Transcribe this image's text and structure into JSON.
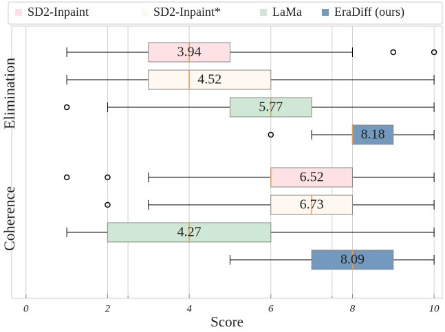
{
  "chart_data": {
    "type": "box",
    "xlabel": "Score",
    "xlim": [
      -0.35,
      10.2
    ],
    "xticks": [
      0,
      2,
      4,
      6,
      8,
      10
    ],
    "minor_xticks": [
      2.5,
      7.5
    ],
    "grid": true,
    "groups": [
      "Elimination",
      "Coherence"
    ],
    "legend_position": "top",
    "series": [
      {
        "name": "SD2-Inpaint",
        "color": "#fde1e5",
        "values": [
          {
            "whislo": 1,
            "q1": 3,
            "med": 4,
            "q3": 5,
            "whishi": 8,
            "fliers": [
              9,
              10
            ],
            "mean": 3.94
          },
          {
            "whislo": 3,
            "q1": 6,
            "med": 6,
            "q3": 8,
            "whishi": 10,
            "fliers": [
              1,
              2
            ],
            "mean": 6.52
          }
        ]
      },
      {
        "name": "SD2-Inpaint*",
        "color": "#fef8f0",
        "values": [
          {
            "whislo": 1,
            "q1": 3,
            "med": 4,
            "q3": 6,
            "whishi": 10,
            "fliers": [],
            "mean": 4.52
          },
          {
            "whislo": 3,
            "q1": 6,
            "med": 7,
            "q3": 8,
            "whishi": 10,
            "fliers": [
              2
            ],
            "mean": 6.73
          }
        ]
      },
      {
        "name": "LaMa",
        "color": "#cfe8d5",
        "values": [
          {
            "whislo": 2,
            "q1": 5,
            "med": 6,
            "q3": 7,
            "whishi": 10,
            "fliers": [
              1
            ],
            "mean": 5.77
          },
          {
            "whislo": 1,
            "q1": 2,
            "med": 4,
            "q3": 6,
            "whishi": 10,
            "fliers": [],
            "mean": 4.27
          }
        ]
      },
      {
        "name": "EraDiff (ours)",
        "color": "#7499be",
        "values": [
          {
            "whislo": 7,
            "q1": 8,
            "med": 8,
            "q3": 9,
            "whishi": 10,
            "fliers": [
              6
            ],
            "mean": 8.18
          },
          {
            "whislo": 5,
            "q1": 7,
            "med": 8,
            "q3": 9,
            "whishi": 10,
            "fliers": [],
            "mean": 8.09
          }
        ]
      }
    ]
  }
}
